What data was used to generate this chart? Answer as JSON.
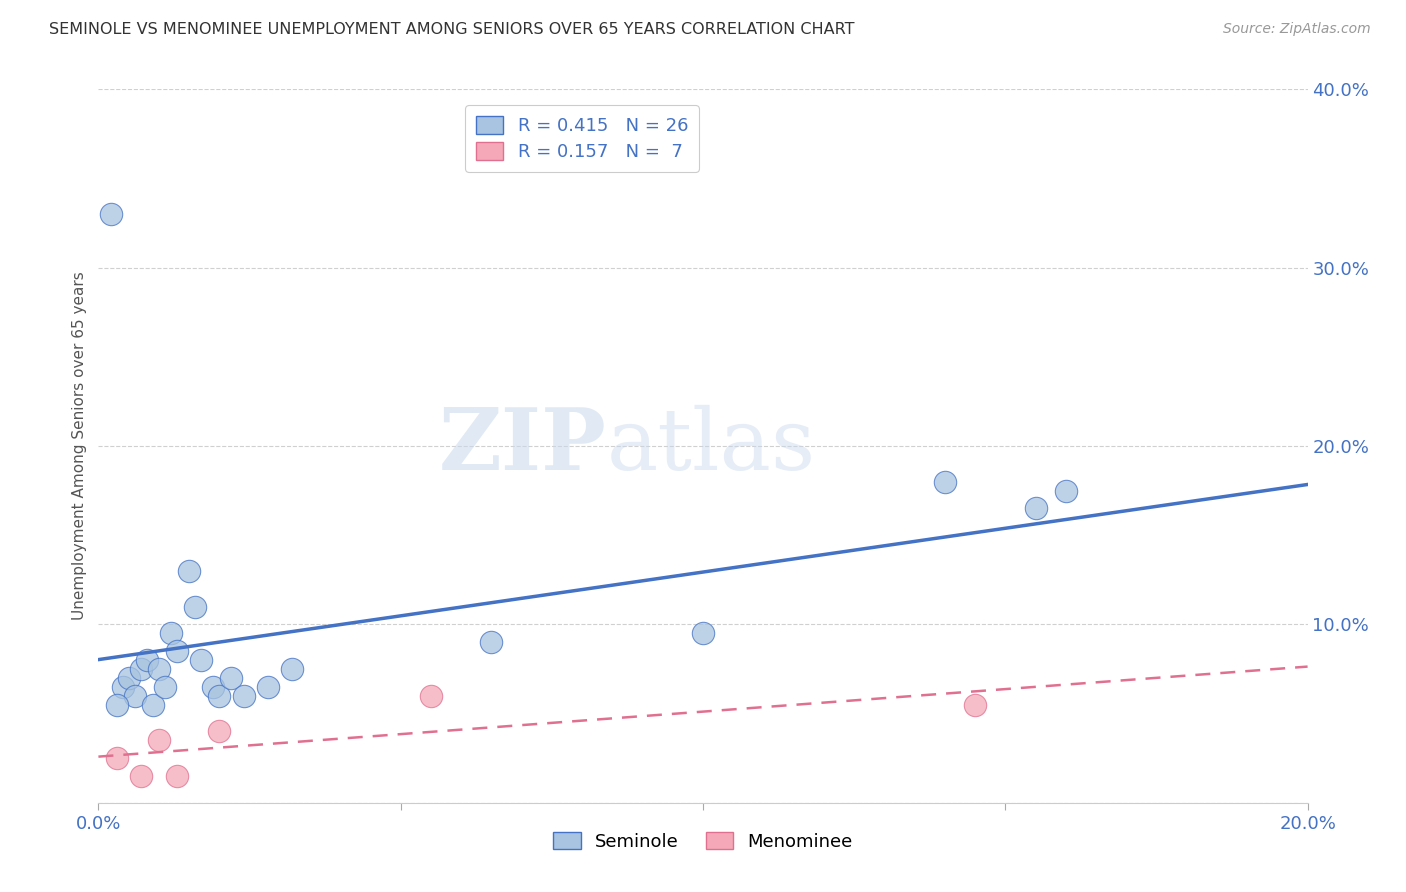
{
  "title": "SEMINOLE VS MENOMINEE UNEMPLOYMENT AMONG SENIORS OVER 65 YEARS CORRELATION CHART",
  "source": "Source: ZipAtlas.com",
  "ylabel": "Unemployment Among Seniors over 65 years",
  "xlim": [
    0.0,
    0.2
  ],
  "ylim": [
    0.0,
    0.4
  ],
  "xticks": [
    0.0,
    0.05,
    0.1,
    0.15,
    0.2
  ],
  "yticks": [
    0.0,
    0.1,
    0.2,
    0.3,
    0.4
  ],
  "seminole_x": [
    0.002,
    0.004,
    0.005,
    0.006,
    0.007,
    0.008,
    0.009,
    0.01,
    0.011,
    0.012,
    0.013,
    0.015,
    0.016,
    0.017,
    0.019,
    0.02,
    0.022,
    0.024,
    0.028,
    0.032,
    0.065,
    0.1,
    0.14,
    0.155,
    0.16,
    0.003
  ],
  "seminole_y": [
    0.33,
    0.065,
    0.07,
    0.06,
    0.075,
    0.08,
    0.055,
    0.075,
    0.065,
    0.095,
    0.085,
    0.13,
    0.11,
    0.08,
    0.065,
    0.06,
    0.07,
    0.06,
    0.065,
    0.075,
    0.09,
    0.095,
    0.18,
    0.165,
    0.175,
    0.055
  ],
  "menominee_x": [
    0.003,
    0.007,
    0.01,
    0.013,
    0.02,
    0.055,
    0.145
  ],
  "menominee_y": [
    0.025,
    0.015,
    0.035,
    0.015,
    0.04,
    0.06,
    0.055
  ],
  "seminole_color": "#a8c4e0",
  "seminole_edge_color": "#4472c4",
  "seminole_line_color": "#4472c4",
  "menominee_color": "#f4a8b8",
  "menominee_edge_color": "#e07090",
  "menominee_line_color": "#e07090",
  "seminole_R": 0.415,
  "seminole_N": 26,
  "menominee_R": 0.157,
  "menominee_N": 7,
  "watermark_zip": "ZIP",
  "watermark_atlas": "atlas",
  "background_color": "#ffffff",
  "grid_color": "#d0d0d0",
  "title_color": "#333333",
  "source_color": "#999999",
  "tick_color": "#4472c4",
  "label_color": "#555555"
}
